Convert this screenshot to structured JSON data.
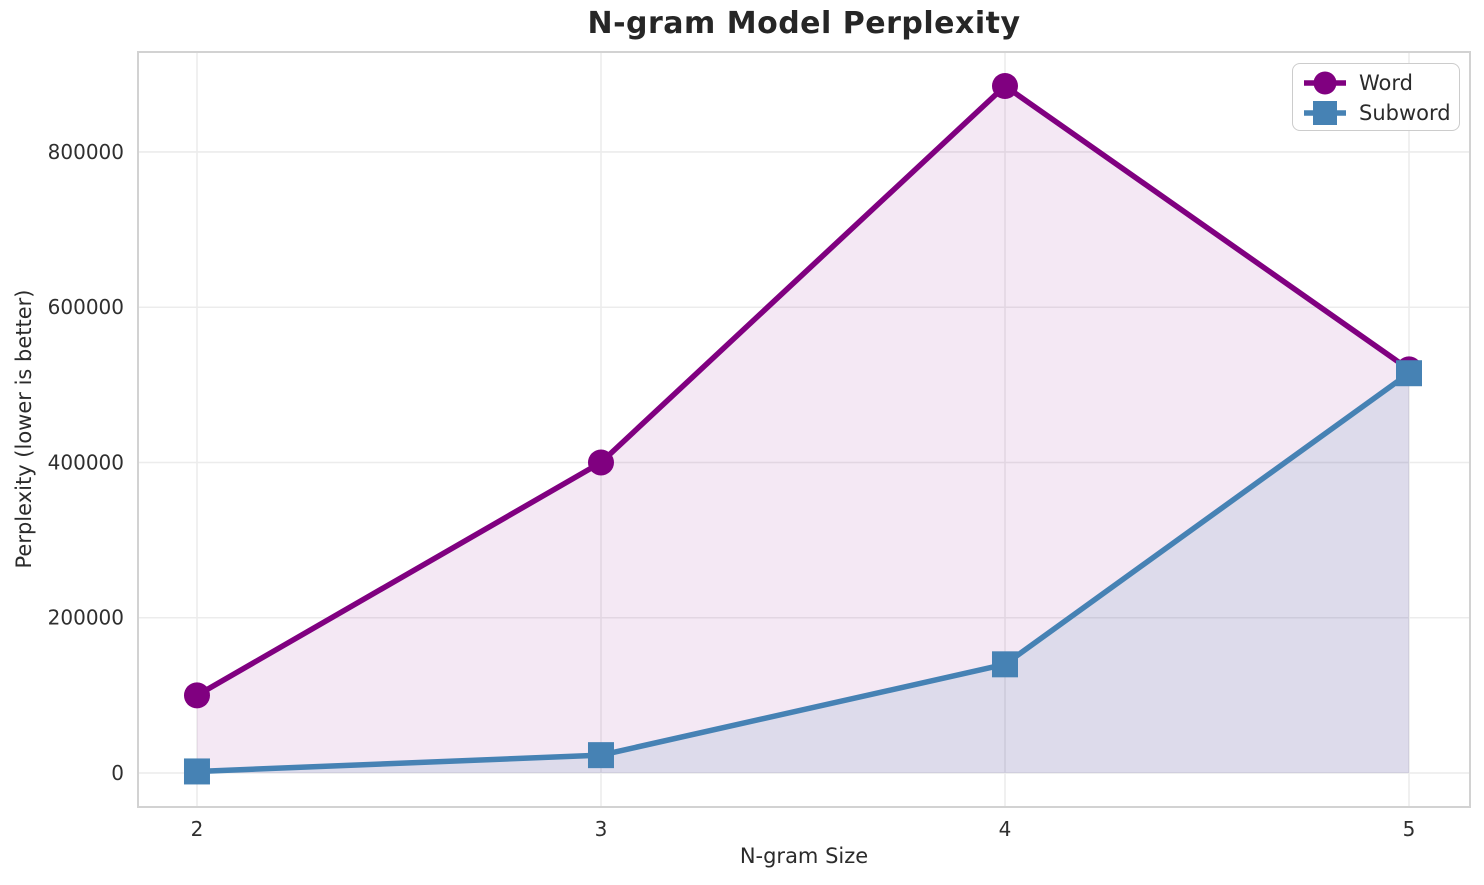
{
  "figure": {
    "title": "N-gram Model Perplexity"
  },
  "chart_data": {
    "type": "line",
    "title": "N-gram Model Perplexity",
    "xlabel": "N-gram Size",
    "ylabel": "Perplexity (lower is better)",
    "x": [
      2,
      3,
      4,
      5
    ],
    "series": [
      {
        "name": "Word",
        "marker": "circle",
        "color": "#800080",
        "fill_opacity": 0.09,
        "values": [
          100000,
          400000,
          885000,
          520000
        ]
      },
      {
        "name": "Subword",
        "marker": "square",
        "color": "#4682B4",
        "fill_opacity": 0.13,
        "values": [
          2000,
          23000,
          140000,
          515000
        ]
      }
    ],
    "xticks": [
      2,
      3,
      4,
      5
    ],
    "yticks": [
      0,
      200000,
      400000,
      600000,
      800000
    ],
    "xlim": [
      1.854,
      5.151
    ],
    "ylim": [
      -43800,
      928800
    ],
    "grid": true,
    "area_fill": true,
    "legend_position": "upper-right"
  },
  "legend": {
    "items": [
      {
        "label": "Word"
      },
      {
        "label": "Subword"
      }
    ]
  },
  "colors": {
    "word": "#800080",
    "subword": "#4682B4",
    "grid": "#ececec",
    "spine": "#d2d2d2",
    "text": "#2b2b2b",
    "title": "#262626",
    "background": "#ffffff"
  }
}
